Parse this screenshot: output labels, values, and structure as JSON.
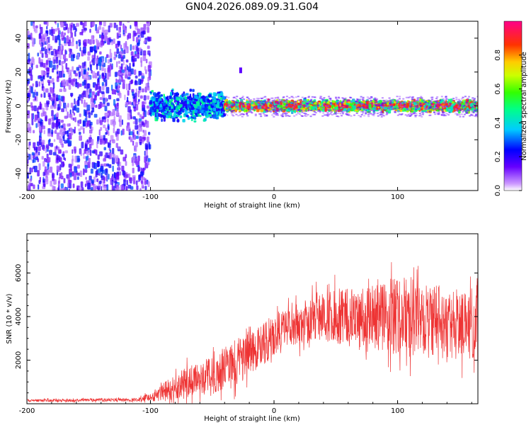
{
  "title": "GN04.2026.089.09.31.G04",
  "chart_data": [
    {
      "type": "heatmap",
      "name": "spectrogram",
      "xlabel": "Height of straight line (km)",
      "ylabel": "Frequency (Hz)",
      "xlim": [
        -200,
        165
      ],
      "ylim": [
        -50,
        50
      ],
      "xticks": [
        "-200",
        "-100",
        "0",
        "100"
      ],
      "yticks": [
        "40",
        "20",
        "0",
        "-20",
        "-40"
      ],
      "colorbar": {
        "label": "Normalized spectral amplitude",
        "range": [
          0,
          1
        ],
        "ticks": [
          "0.0",
          "0.2",
          "0.4",
          "0.6",
          "0.8"
        ]
      },
      "description_regions": [
        {
          "x_range": [
            -200,
            -100
          ],
          "freq_range": [
            -50,
            50
          ],
          "amplitude": [
            0.05,
            0.3
          ]
        },
        {
          "x_range": [
            -100,
            -40
          ],
          "freq_range": [
            -8,
            8
          ],
          "amplitude": [
            0.2,
            0.5
          ]
        },
        {
          "x_range": [
            -40,
            165
          ],
          "freq_range": [
            -3,
            3
          ],
          "amplitude": [
            0.4,
            0.95
          ]
        }
      ],
      "noise_blob": {
        "x": -27,
        "freq": 21
      }
    },
    {
      "type": "line",
      "name": "snr",
      "xlabel": "Height of straight line (km)",
      "ylabel": "SNR (10 * v/v)",
      "xlim": [
        -200,
        165
      ],
      "ylim": [
        0,
        7800
      ],
      "xticks": [
        "-200",
        "-100",
        "0",
        "100"
      ],
      "yticks": [
        "2000",
        "4000",
        "6000"
      ],
      "color": "#ee3333",
      "envelope": [
        {
          "x": -200,
          "mean": 150,
          "spread": 60
        },
        {
          "x": -110,
          "mean": 180,
          "spread": 80
        },
        {
          "x": -95,
          "mean": 400,
          "spread": 300
        },
        {
          "x": -75,
          "mean": 900,
          "spread": 700
        },
        {
          "x": -50,
          "mean": 1300,
          "spread": 900
        },
        {
          "x": -30,
          "mean": 1900,
          "spread": 1100
        },
        {
          "x": -10,
          "mean": 2700,
          "spread": 1000
        },
        {
          "x": 10,
          "mean": 3500,
          "spread": 900
        },
        {
          "x": 40,
          "mean": 4000,
          "spread": 1100
        },
        {
          "x": 70,
          "mean": 3900,
          "spread": 1500
        },
        {
          "x": 100,
          "mean": 4100,
          "spread": 1800
        },
        {
          "x": 130,
          "mean": 3800,
          "spread": 1700
        },
        {
          "x": 165,
          "mean": 3500,
          "spread": 1500
        }
      ]
    }
  ]
}
